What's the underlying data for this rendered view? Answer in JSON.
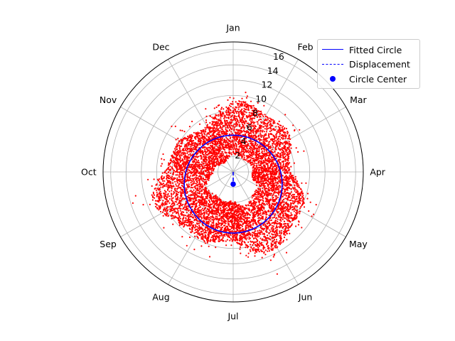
{
  "chart_data": {
    "type": "polar-scatter",
    "theta_labels": [
      "Jan",
      "Feb",
      "Mar",
      "Apr",
      "May",
      "Jun",
      "Jul",
      "Aug",
      "Sep",
      "Oct",
      "Nov",
      "Dec"
    ],
    "theta_direction": "clockwise",
    "theta_zero": "top",
    "r_ticks": [
      2,
      4,
      6,
      8,
      10,
      12,
      14,
      16
    ],
    "rlim": [
      0,
      17
    ],
    "grid": true,
    "legend_placement": "upper-right",
    "colors": {
      "scatter": "#ff0000",
      "fit": "#0000ff",
      "grid": "#b0b0b0"
    },
    "scatter": {
      "description_typical_radius_range": [
        4,
        10
      ],
      "max_radius": 16.5,
      "point_count_approx": 7000,
      "color": "#ff0000"
    },
    "fitted_circle": {
      "center_x": 0.0,
      "center_y": -1.6,
      "radius": 6.4,
      "color": "#0000ff"
    },
    "circle_center": {
      "r": 1.6,
      "theta_label": "Jul",
      "color": "#0000ff"
    },
    "displacement": {
      "from": [
        0,
        0
      ],
      "to": [
        0.0,
        -1.6
      ],
      "style": "dashed",
      "color": "#0000ff"
    },
    "series": [
      {
        "name": "Fitted Circle",
        "style": "line"
      },
      {
        "name": "Displacement",
        "style": "dashed"
      },
      {
        "name": "Circle Center",
        "style": "marker"
      }
    ]
  }
}
